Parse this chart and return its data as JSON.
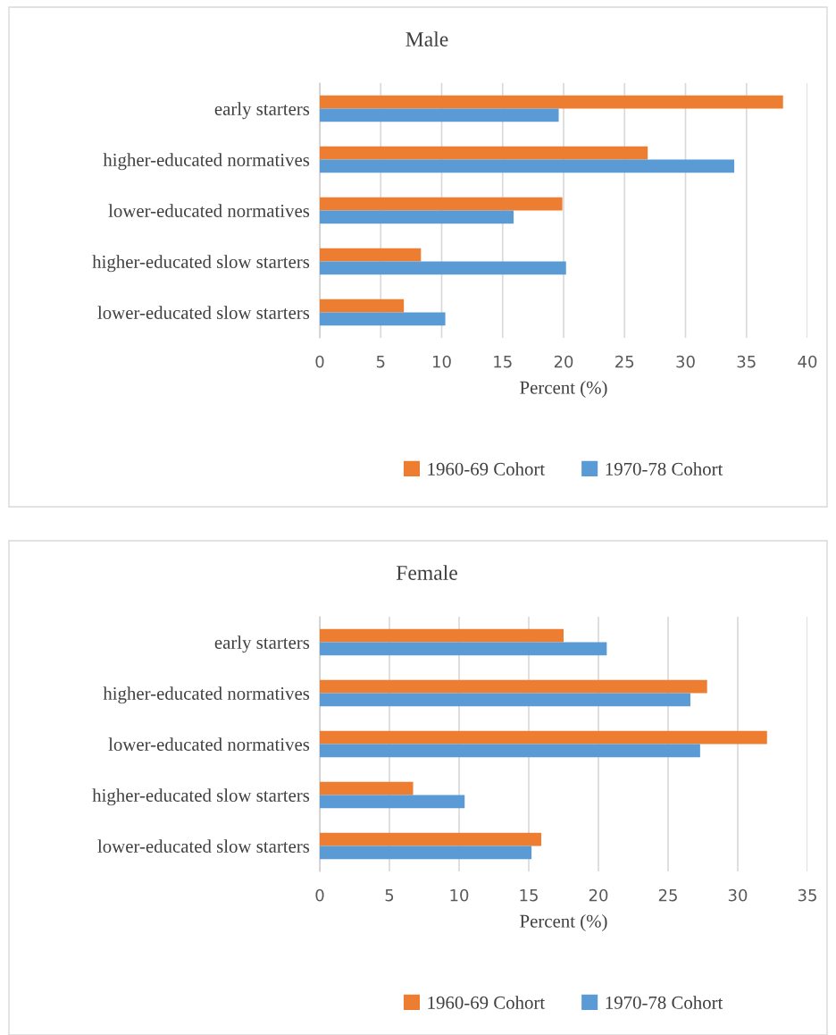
{
  "chart_data": [
    {
      "type": "bar",
      "orientation": "horizontal",
      "title": "Male",
      "xlabel": "Percent (%)",
      "categories": [
        "early starters",
        "higher-educated normatives",
        "lower-educated normatives",
        "higher-educated slow starters",
        "lower-educated slow starters"
      ],
      "series": [
        {
          "name": "1960-69 Cohort",
          "color": "#ed7d31",
          "values": [
            38.0,
            26.9,
            19.9,
            8.3,
            6.9
          ]
        },
        {
          "name": "1970-78 Cohort",
          "color": "#5b9bd5",
          "values": [
            19.6,
            34.0,
            15.9,
            20.2,
            10.3
          ]
        }
      ],
      "xlim": [
        0,
        40
      ],
      "xticks": [
        0,
        5,
        10,
        15,
        20,
        25,
        30,
        35,
        40
      ],
      "grid": "x",
      "legend": "bottom"
    },
    {
      "type": "bar",
      "orientation": "horizontal",
      "title": "Female",
      "xlabel": "Percent (%)",
      "categories": [
        "early starters",
        "higher-educated normatives",
        "lower-educated normatives",
        "higher-educated slow starters",
        "lower-educated slow starters"
      ],
      "series": [
        {
          "name": "1960-69 Cohort",
          "color": "#ed7d31",
          "values": [
            17.5,
            27.8,
            32.1,
            6.7,
            15.9
          ]
        },
        {
          "name": "1970-78 Cohort",
          "color": "#5b9bd5",
          "values": [
            20.6,
            26.6,
            27.3,
            10.4,
            15.2
          ]
        }
      ],
      "xlim": [
        0,
        35
      ],
      "xticks": [
        0,
        5,
        10,
        15,
        20,
        25,
        30,
        35
      ],
      "grid": "x",
      "legend": "bottom"
    }
  ]
}
